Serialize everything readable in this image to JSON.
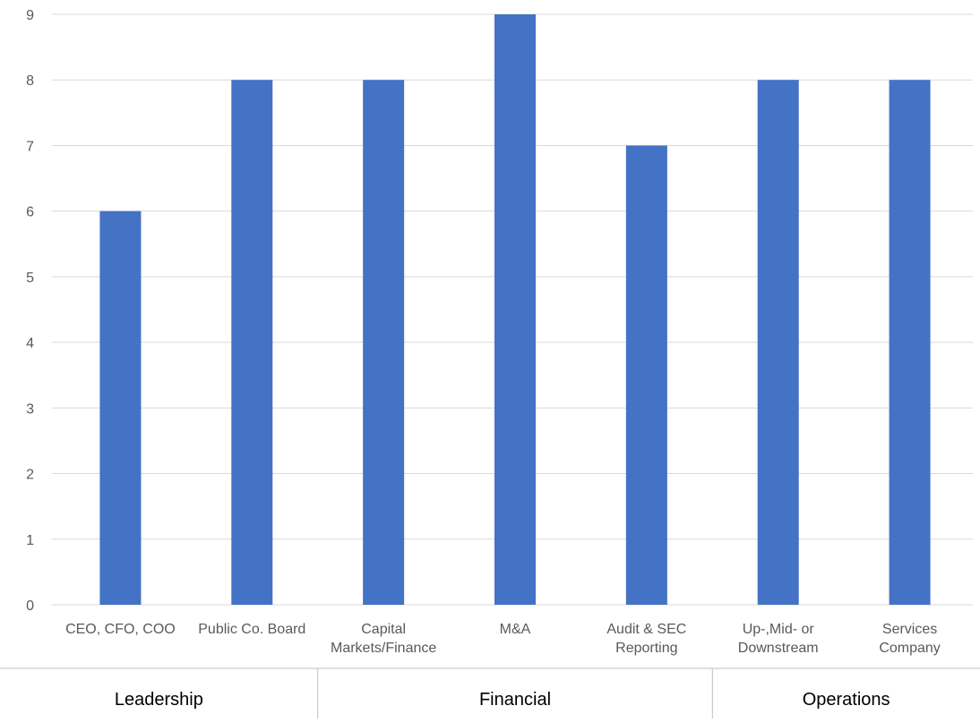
{
  "chart_data": {
    "type": "bar",
    "title": "",
    "xlabel": "",
    "ylabel": "",
    "categories": [
      [
        "CEO, CFO, COO"
      ],
      [
        "Public Co. Board"
      ],
      [
        "Capital",
        "Markets/Finance"
      ],
      [
        "M&A"
      ],
      [
        "Audit & SEC",
        "Reporting"
      ],
      [
        "Up-,Mid- or",
        "Downstream"
      ],
      [
        "Services",
        "Company"
      ]
    ],
    "values": [
      6,
      8,
      8,
      9,
      7,
      8,
      8
    ],
    "groups": [
      {
        "label": "Leadership",
        "start": 0,
        "end": 1
      },
      {
        "label": "Financial",
        "start": 2,
        "end": 4
      },
      {
        "label": "Operations",
        "start": 5,
        "end": 6
      }
    ],
    "yticks": [
      "0",
      "1",
      "2",
      "3",
      "4",
      "5",
      "6",
      "7",
      "8",
      "9"
    ],
    "ylim": [
      0,
      9
    ],
    "grid": true,
    "legend": "none",
    "colors": {
      "bar": "#4472c4",
      "grid": "#d9d9d9",
      "tick_text": "#595959",
      "separator": "#bfbfbf"
    }
  }
}
